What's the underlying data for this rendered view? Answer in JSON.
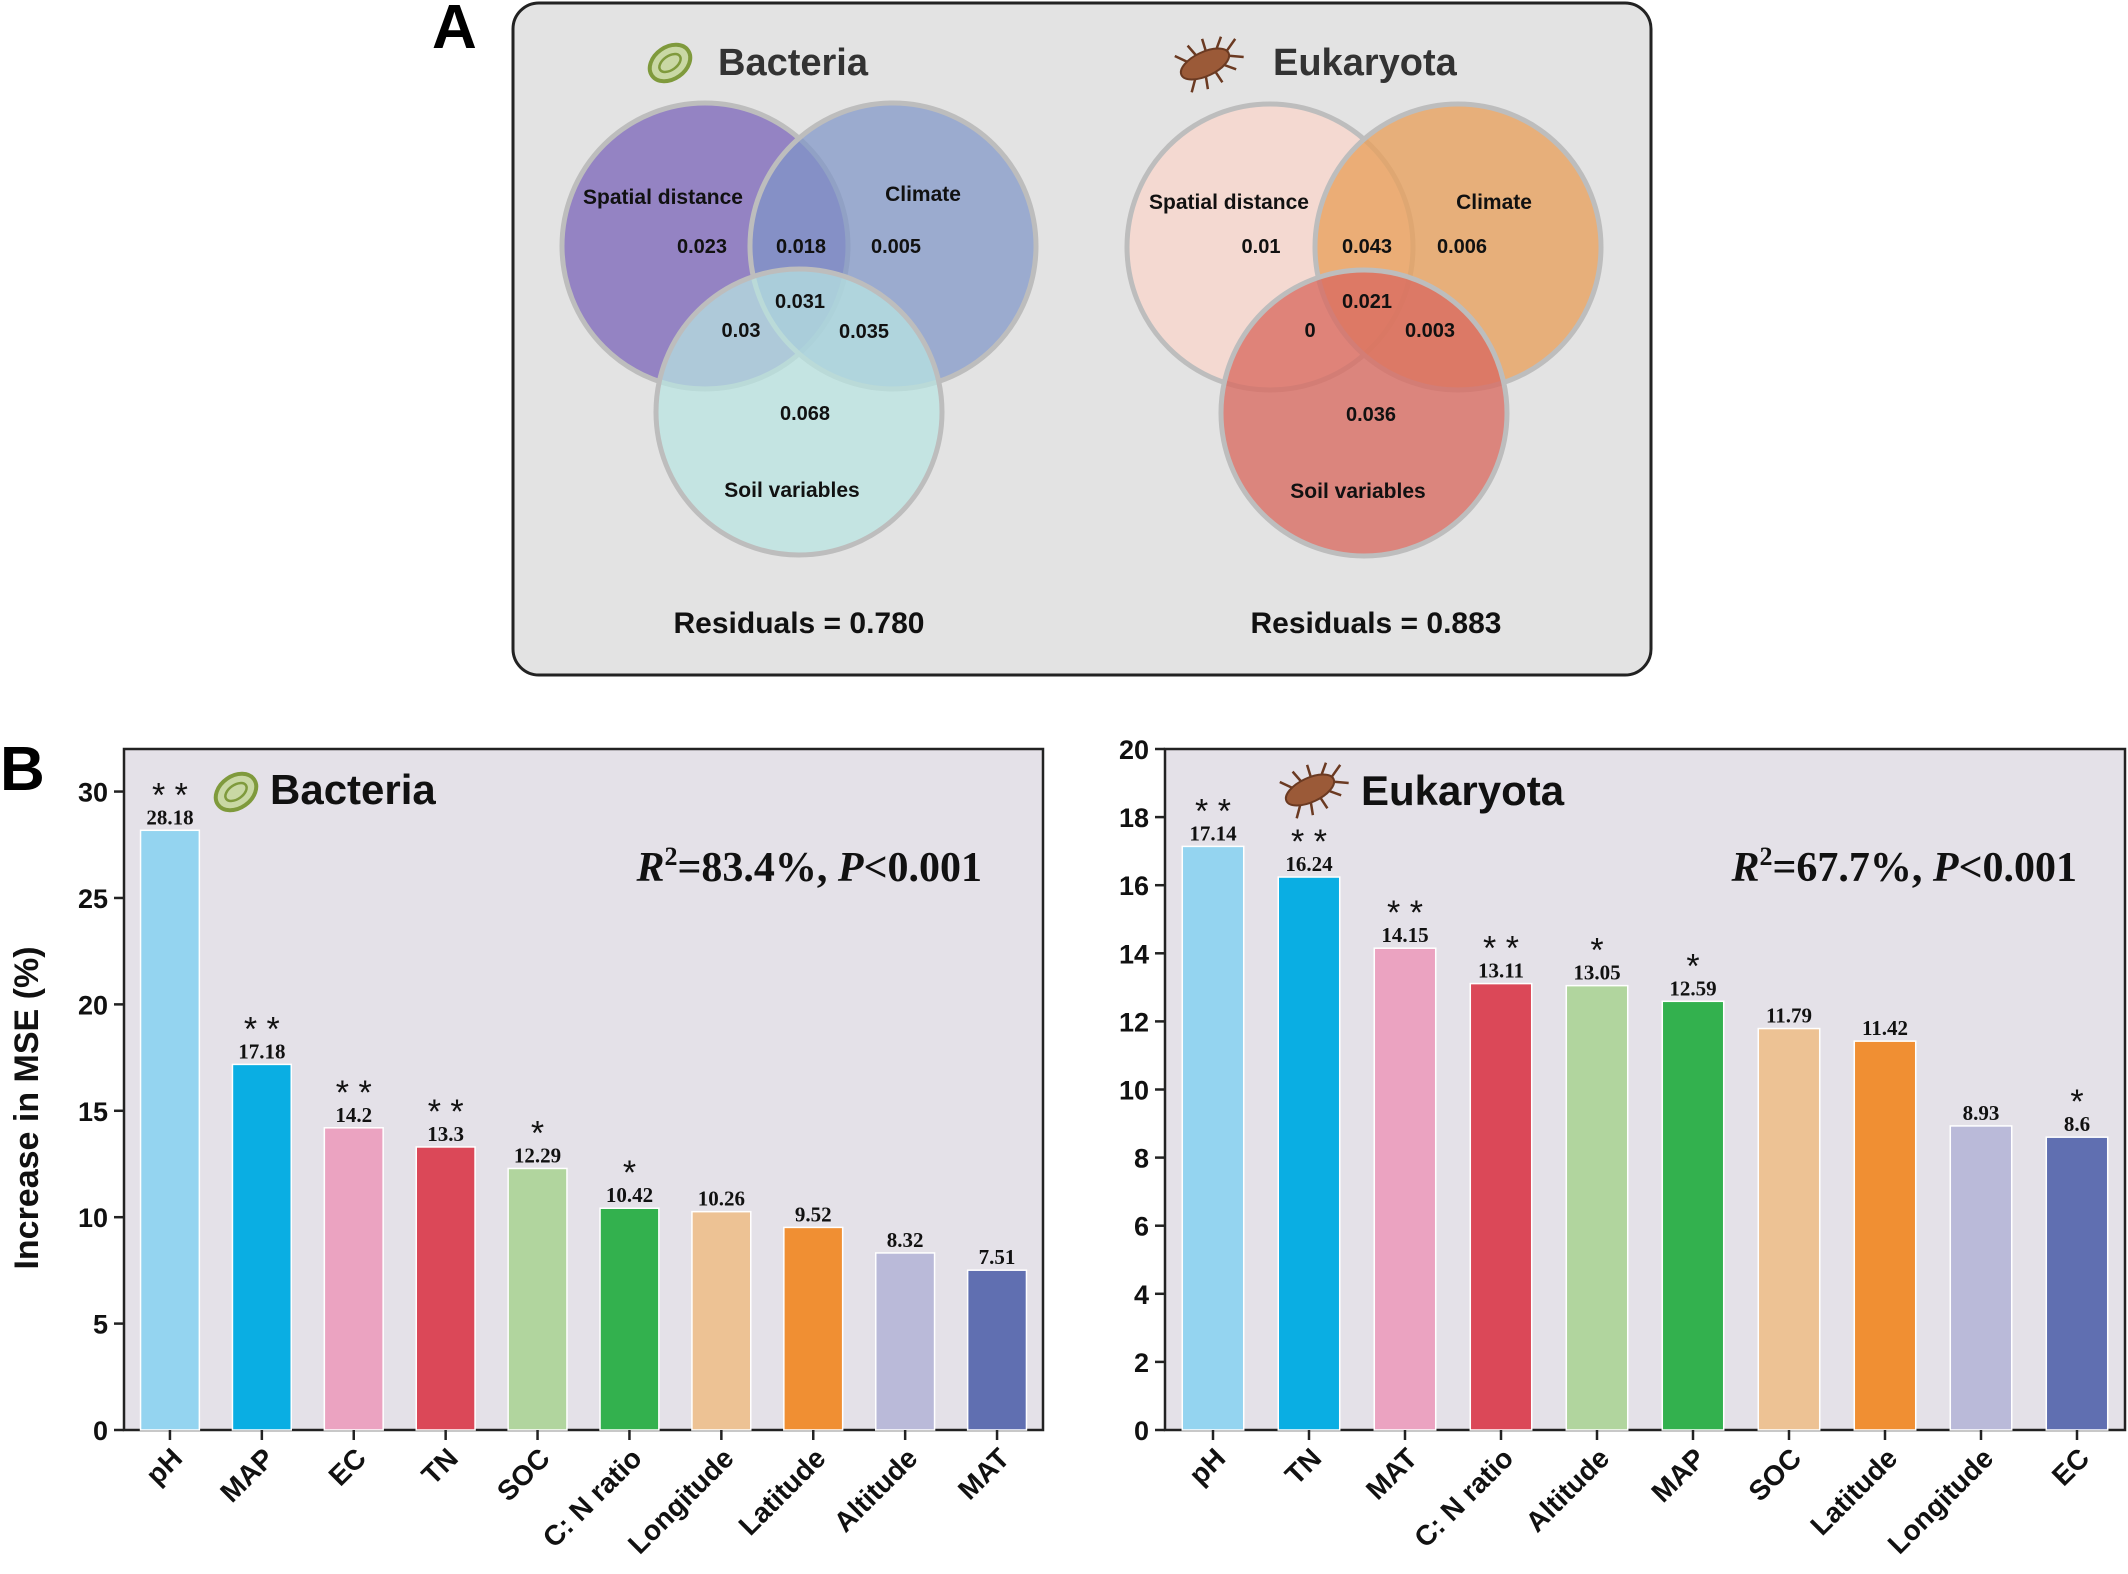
{
  "panels": {
    "a_letter": "A",
    "b_letter": "B"
  },
  "venn": [
    {
      "title": "Bacteria",
      "icon": "bacterium-icon",
      "sets": [
        "Spatial distance",
        "Climate",
        "Soil variables"
      ],
      "colors": [
        "#8b78bf",
        "#8fa2cc",
        "#c4e6e4"
      ],
      "values": {
        "spatial_only": "0.023",
        "climate_only": "0.005",
        "soil_only": "0.068",
        "spatial_climate": "0.018",
        "spatial_soil": "0.03",
        "climate_soil": "0.035",
        "all_three": "0.031"
      },
      "residuals": "Residuals = 0.780"
    },
    {
      "title": "Eukaryota",
      "icon": "mite-icon",
      "sets": [
        "Spatial distance",
        "Climate",
        "Soil variables"
      ],
      "colors": [
        "#f6d7ce",
        "#e8a96b",
        "#d97a6e"
      ],
      "values": {
        "spatial_only": "0.01",
        "climate_only": "0.006",
        "soil_only": "0.036",
        "spatial_climate": "0.043",
        "spatial_soil": "0",
        "climate_soil": "0.003",
        "all_three": "0.021"
      },
      "residuals": "Residuals = 0.883"
    }
  ],
  "chart_data": [
    {
      "type": "bar",
      "title": "Bacteria",
      "icon": "bacterium-icon",
      "ylabel": "Increase in MSE (%)",
      "ylim": [
        0,
        32
      ],
      "yticks": [
        0,
        5,
        10,
        15,
        20,
        25,
        30
      ],
      "stat": {
        "r2": "=83.4%,",
        "p": "<0.001"
      },
      "categories": [
        "pH",
        "MAP",
        "EC",
        "TN",
        "SOC",
        "C: N ratio",
        "Longitude",
        "Latitude",
        "Altitude",
        "MAT"
      ],
      "values": [
        28.18,
        17.18,
        14.2,
        13.3,
        12.29,
        10.42,
        10.26,
        9.52,
        8.32,
        7.51
      ],
      "labels": [
        "28.18",
        "17.18",
        "14.2",
        "13.3",
        "12.29",
        "10.42",
        "10.26",
        "9.52",
        "8.32",
        "7.51"
      ],
      "significance": [
        "**",
        "**",
        "**",
        "**",
        "*",
        "*",
        "",
        "",
        "",
        ""
      ],
      "colors": [
        "#94d4f0",
        "#0aaee3",
        "#eba3c1",
        "#db4858",
        "#b1d59e",
        "#33b14e",
        "#edc294",
        "#f08f33",
        "#babad9",
        "#606fb1"
      ],
      "grid": false
    },
    {
      "type": "bar",
      "title": "Eukaryota",
      "icon": "mite-icon",
      "ylabel": "",
      "ylim": [
        0,
        20
      ],
      "yticks": [
        0,
        2,
        4,
        6,
        8,
        10,
        12,
        14,
        16,
        18,
        20
      ],
      "stat": {
        "r2": "=67.7%,",
        "p": "<0.001"
      },
      "categories": [
        "pH",
        "TN",
        "MAT",
        "C: N ratio",
        "Altitude",
        "MAP",
        "SOC",
        "Latitude",
        "Longitude",
        "EC"
      ],
      "values": [
        17.14,
        16.24,
        14.15,
        13.11,
        13.05,
        12.59,
        11.79,
        11.42,
        8.93,
        8.6
      ],
      "labels": [
        "17.14",
        "16.24",
        "14.15",
        "13.11",
        "13.05",
        "12.59",
        "11.79",
        "11.42",
        "8.93",
        "8.6"
      ],
      "significance": [
        "**",
        "**",
        "**",
        "**",
        "*",
        "*",
        "",
        "",
        "",
        "*"
      ],
      "colors": [
        "#94d4f0",
        "#0aaee3",
        "#eba3c1",
        "#db4858",
        "#b1d59e",
        "#33b14e",
        "#edc294",
        "#f08f33",
        "#babad9",
        "#606fb1"
      ],
      "grid": false
    }
  ]
}
